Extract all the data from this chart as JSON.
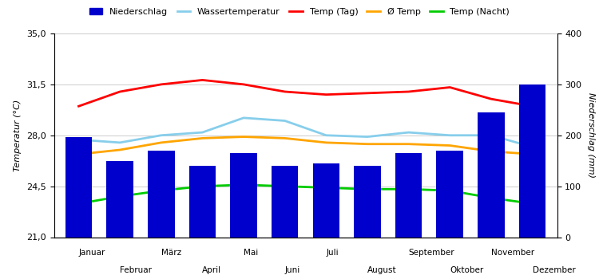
{
  "months": [
    "Januar",
    "Februar",
    "März",
    "April",
    "Mai",
    "Juni",
    "Juli",
    "August",
    "September",
    "Oktober",
    "November",
    "Dezember"
  ],
  "months_odd": [
    "Januar",
    "März",
    "Mai",
    "Juli",
    "September",
    "November"
  ],
  "months_even": [
    "Februar",
    "April",
    "Juni",
    "August",
    "Oktober",
    "Dezember"
  ],
  "precipitation_mm": [
    197,
    150,
    170,
    140,
    165,
    140,
    145,
    140,
    165,
    170,
    245,
    300
  ],
  "temp_day": [
    30.0,
    31.0,
    31.5,
    31.8,
    31.5,
    31.0,
    30.8,
    30.9,
    31.0,
    31.3,
    30.5,
    30.0
  ],
  "temp_avg": [
    26.7,
    27.0,
    27.5,
    27.8,
    27.9,
    27.8,
    27.5,
    27.4,
    27.4,
    27.3,
    26.9,
    26.7
  ],
  "temp_night": [
    23.3,
    23.8,
    24.2,
    24.5,
    24.6,
    24.5,
    24.4,
    24.3,
    24.3,
    24.2,
    23.7,
    23.3
  ],
  "temp_water": [
    27.7,
    27.5,
    28.0,
    28.2,
    29.2,
    29.0,
    28.0,
    27.9,
    28.2,
    28.0,
    28.0,
    27.2
  ],
  "bar_color": "#0000CC",
  "line_color_day": "#FF0000",
  "line_color_avg": "#FFA500",
  "line_color_night": "#00CC00",
  "line_color_water": "#87CEEB",
  "ylim_temp": [
    21.0,
    35.0
  ],
  "ylim_precip": [
    0,
    400
  ],
  "yticks_temp": [
    21.0,
    24.5,
    28.0,
    31.5,
    35.0
  ],
  "ytick_labels_temp": [
    "21,0",
    "24,5",
    "28,0",
    "31,5",
    "35,0"
  ],
  "yticks_precip": [
    0,
    100,
    200,
    300,
    400
  ],
  "ylabel_left": "Temperatur (°C)",
  "ylabel_right": "Niederschlag (mm)",
  "bg_color": "#FFFFFF",
  "grid_color": "#CCCCCC"
}
